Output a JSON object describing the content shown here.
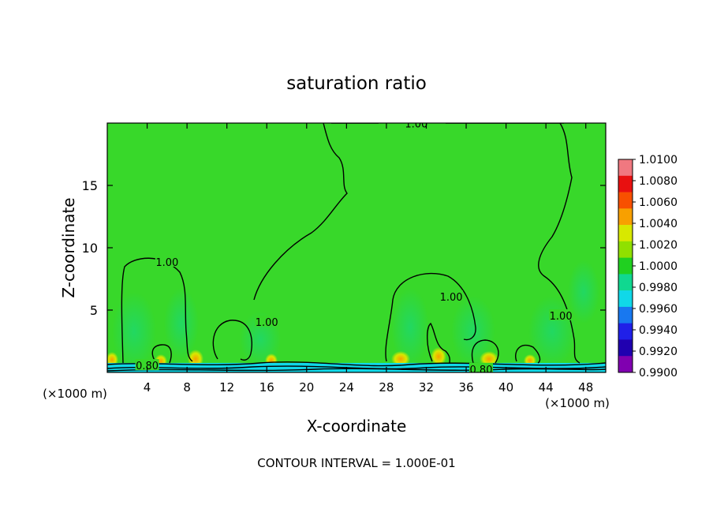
{
  "chart_data": {
    "type": "heatmap",
    "title": "saturation ratio",
    "xlabel": "X-coordinate",
    "ylabel": "Z-coordinate",
    "x_unit": "(×1000 m)",
    "x_unit_right": "(×1000 m)",
    "footer": "CONTOUR INTERVAL = 1.000E-01",
    "xlim": [
      0,
      50
    ],
    "ylim": [
      0,
      20
    ],
    "x_ticks": [
      4,
      8,
      12,
      16,
      20,
      24,
      28,
      32,
      36,
      40,
      44,
      48
    ],
    "y_ticks": [
      5,
      10,
      15
    ],
    "colorbar": {
      "labels": [
        "1.0100",
        "1.0080",
        "1.0060",
        "1.0040",
        "1.0020",
        "1.0000",
        "0.9980",
        "0.9960",
        "0.9940",
        "0.9920",
        "0.9900"
      ],
      "colors": [
        "#f07880",
        "#e81010",
        "#f85000",
        "#f8a000",
        "#d8e800",
        "#90e000",
        "#20d020",
        "#10d890",
        "#10d8e8",
        "#1878f0",
        "#2020e8",
        "#2000b0",
        "#8000b0"
      ]
    },
    "background_color": "#38d82a",
    "contour_labels": [
      {
        "text": "1.00",
        "x": 31.0,
        "z": 19.9
      },
      {
        "text": "1.00",
        "x": 6.0,
        "z": 8.8
      },
      {
        "text": "1.00",
        "x": 16.0,
        "z": 4.0
      },
      {
        "text": "1.00",
        "x": 34.5,
        "z": 6.0
      },
      {
        "text": "1.00",
        "x": 45.5,
        "z": 4.5
      },
      {
        "text": "0.80",
        "x": 4.0,
        "z": 0.5
      },
      {
        "text": "0.80",
        "x": 37.5,
        "z": 0.2
      }
    ]
  }
}
